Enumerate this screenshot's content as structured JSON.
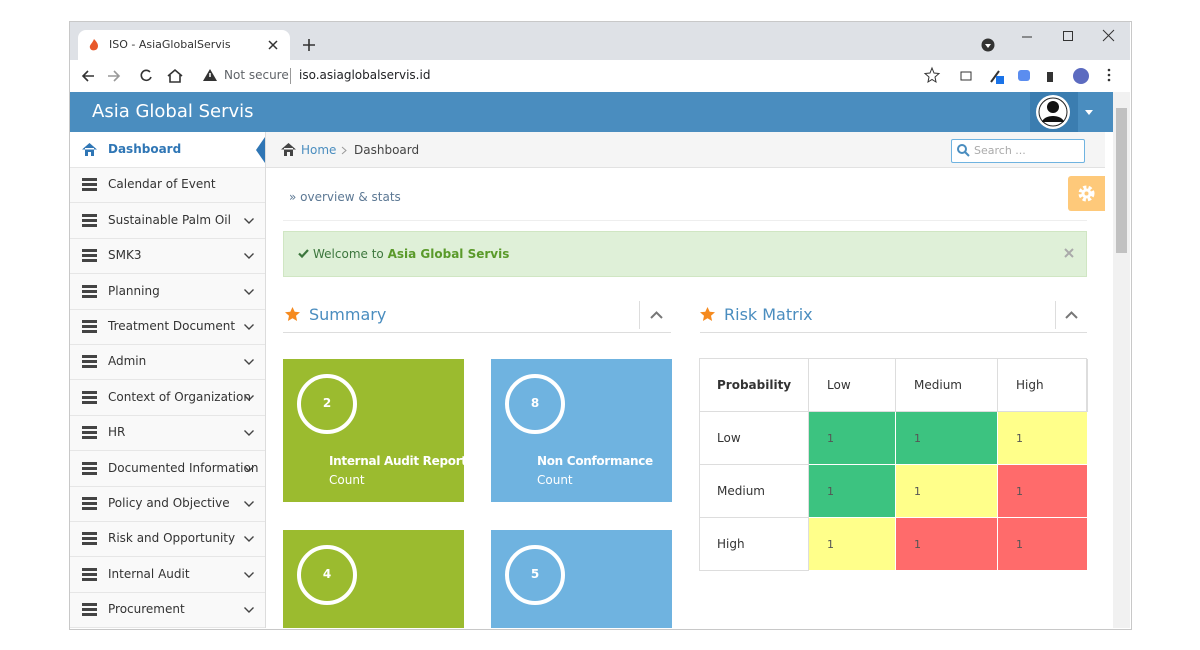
{
  "browser": {
    "tab_title": "ISO - AsiaGlobalServis",
    "security": "Not secure",
    "url": "iso.asiaglobalservis.id"
  },
  "app": {
    "title": "Asia Global Servis"
  },
  "sidebar": {
    "items": [
      {
        "label": "Dashboard",
        "active": true,
        "submenu": false
      },
      {
        "label": "Calendar of Event",
        "active": false,
        "submenu": false
      },
      {
        "label": "Sustainable Palm Oil",
        "active": false,
        "submenu": true
      },
      {
        "label": "SMK3",
        "active": false,
        "submenu": true
      },
      {
        "label": "Planning",
        "active": false,
        "submenu": true
      },
      {
        "label": "Treatment Document",
        "active": false,
        "submenu": true
      },
      {
        "label": "Admin",
        "active": false,
        "submenu": true
      },
      {
        "label": "Context of Organization",
        "active": false,
        "submenu": true
      },
      {
        "label": "HR",
        "active": false,
        "submenu": true
      },
      {
        "label": "Documented Information",
        "active": false,
        "submenu": true
      },
      {
        "label": "Policy and Objective",
        "active": false,
        "submenu": true
      },
      {
        "label": "Risk and Opportunity",
        "active": false,
        "submenu": true
      },
      {
        "label": "Internal Audit",
        "active": false,
        "submenu": true
      },
      {
        "label": "Procurement",
        "active": false,
        "submenu": true
      }
    ]
  },
  "breadcrumb": {
    "home": "Home",
    "current": "Dashboard"
  },
  "search": {
    "placeholder": "Search ..."
  },
  "page_header": {
    "title": "» overview & stats"
  },
  "alert": {
    "text": "Welcome to",
    "highlight": "Asia Global Servis"
  },
  "summary": {
    "title": "Summary",
    "tiles": [
      {
        "count": 2,
        "label": "Internal Audit Report",
        "sub": "Count",
        "color": "#9bbb2f"
      },
      {
        "count": 8,
        "label": "Non Conformance",
        "sub": "Count",
        "color": "#6fb3e0"
      },
      {
        "count": 4,
        "color": "#9bbb2f"
      },
      {
        "count": 5,
        "color": "#6fb3e0"
      }
    ]
  },
  "risk_matrix": {
    "title": "Risk Matrix",
    "header": [
      "Probability",
      "Low",
      "Medium",
      "High"
    ],
    "rows": [
      {
        "label": "Low",
        "cells": [
          {
            "value": 1,
            "color": "#3cc380"
          },
          {
            "value": 1,
            "color": "#3cc380"
          },
          {
            "value": 1,
            "color": "#ffff8a"
          }
        ]
      },
      {
        "label": "Medium",
        "cells": [
          {
            "value": 1,
            "color": "#3cc380"
          },
          {
            "value": 1,
            "color": "#ffff8a"
          },
          {
            "value": 1,
            "color": "#ff6b6b"
          }
        ]
      },
      {
        "label": "High",
        "cells": [
          {
            "value": 1,
            "color": "#ffff8a"
          },
          {
            "value": 1,
            "color": "#ff6b6b"
          },
          {
            "value": 1,
            "color": "#ff6b6b"
          }
        ]
      }
    ]
  }
}
